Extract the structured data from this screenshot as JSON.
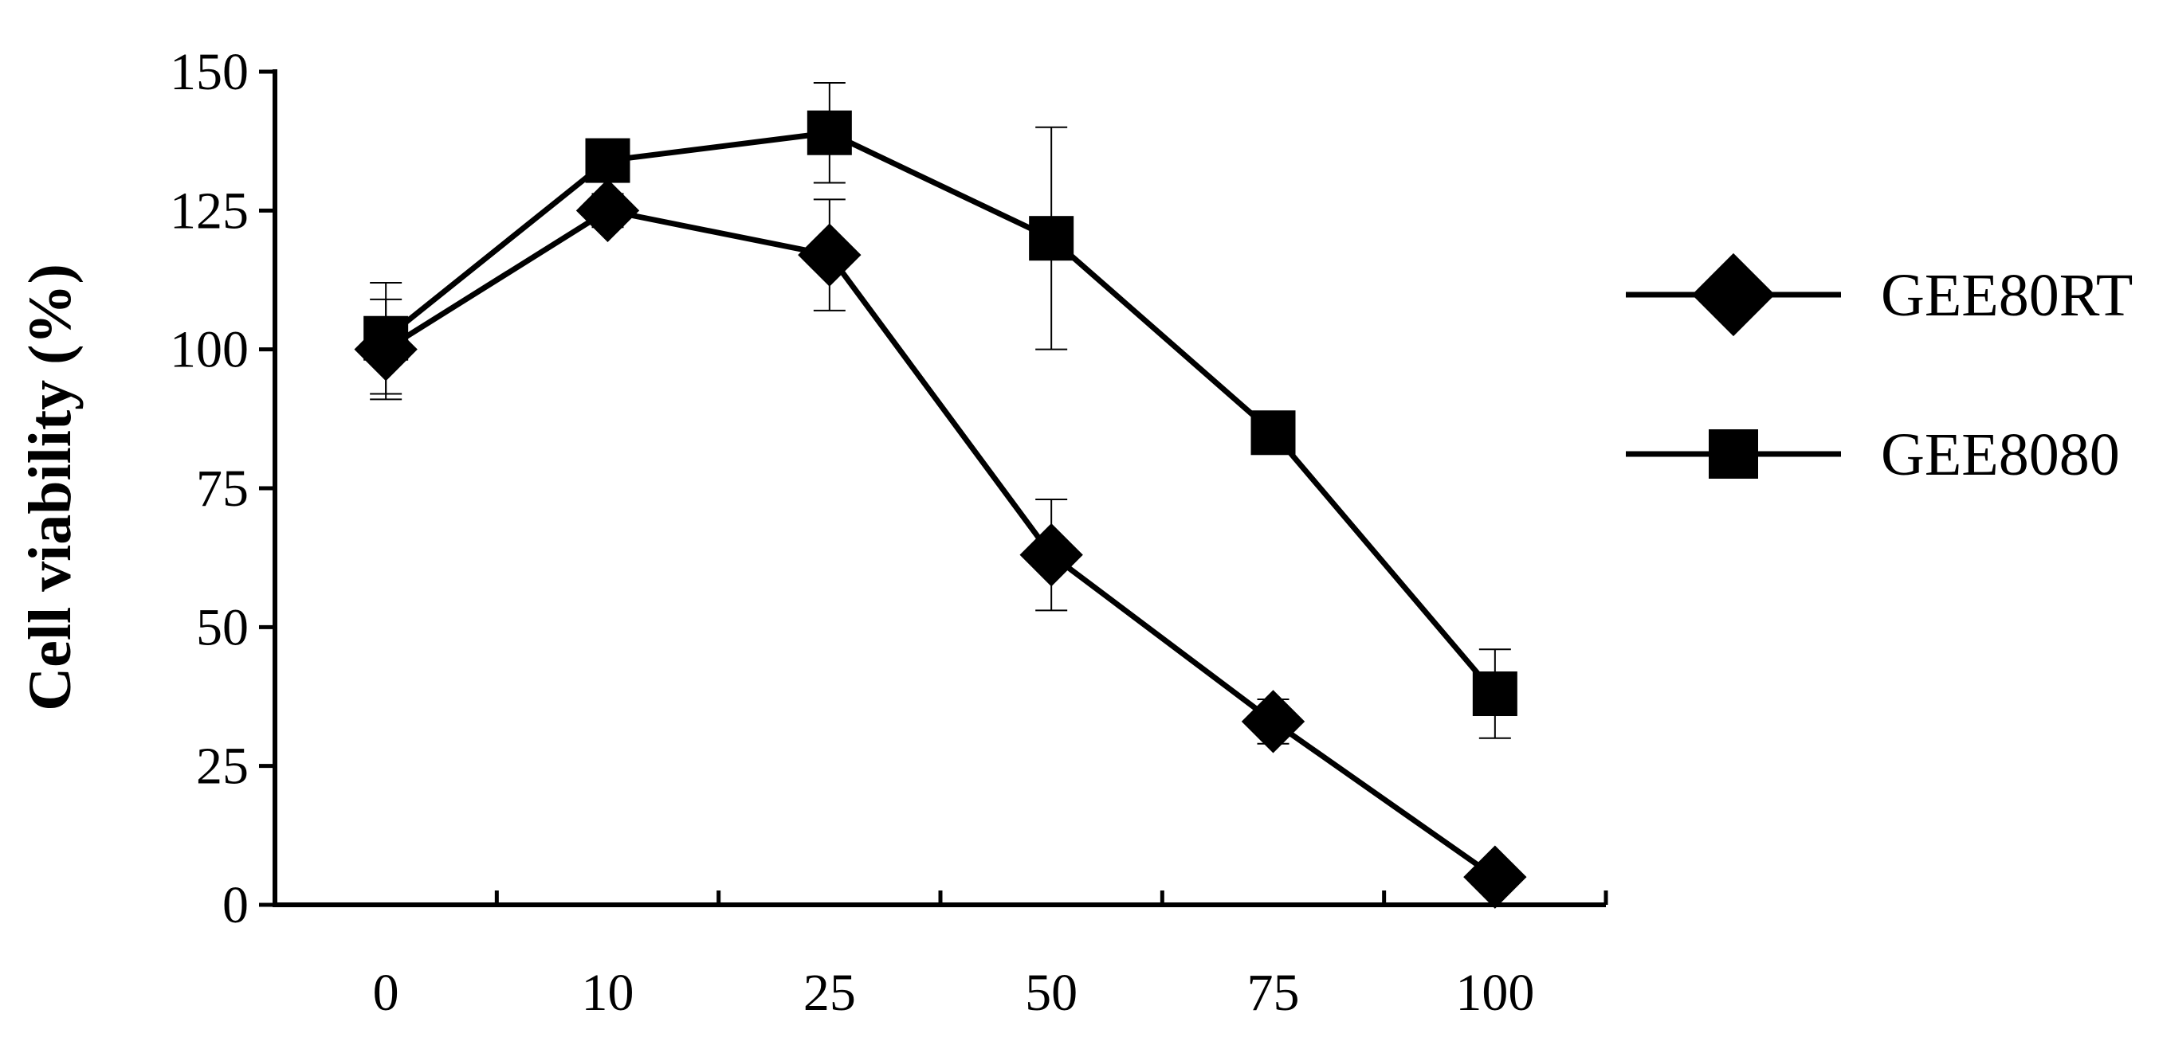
{
  "chart_data": {
    "type": "line",
    "categories": [
      "0",
      "10",
      "25",
      "50",
      "75",
      "100"
    ],
    "xlabel": "",
    "ylabel": "Cell viability (%)",
    "ylim": [
      0,
      150
    ],
    "yticks": [
      0,
      25,
      50,
      75,
      100,
      125,
      150
    ],
    "grid": false,
    "legend_position": "right",
    "series": [
      {
        "name": "GEE80RT",
        "marker": "diamond",
        "values": [
          100,
          125,
          117,
          63,
          33,
          5
        ],
        "error": [
          9,
          3,
          10,
          10,
          4,
          1
        ]
      },
      {
        "name": "GEE8080",
        "marker": "square",
        "values": [
          102,
          134,
          139,
          120,
          85,
          38
        ],
        "error": [
          10,
          2,
          9,
          20,
          3,
          8
        ]
      }
    ]
  }
}
